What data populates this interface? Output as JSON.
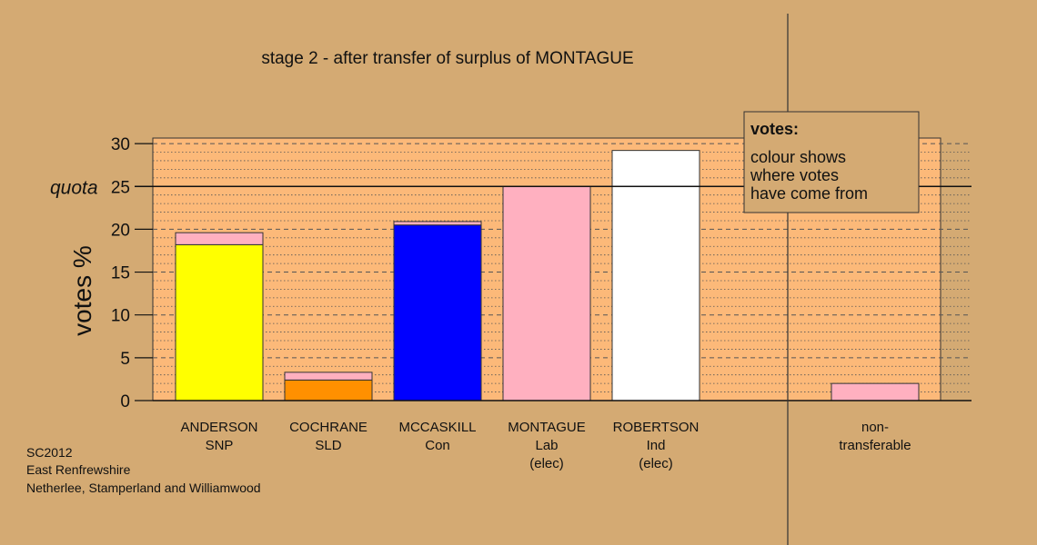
{
  "chart_data": {
    "type": "bar",
    "stacked": true,
    "title": "stage 2 - after transfer of surplus of MONTAGUE",
    "ylabel": "votes %",
    "xlabel": "",
    "ylim": [
      0,
      30.5
    ],
    "yticks": [
      0,
      5,
      10,
      15,
      20,
      25,
      30
    ],
    "quota": {
      "label": "quota",
      "value": 25
    },
    "grid": true,
    "categories": [
      {
        "lines": [
          "ANDERSON",
          "SNP"
        ]
      },
      {
        "lines": [
          "COCHRANE",
          "SLD"
        ]
      },
      {
        "lines": [
          "MCCASKILL",
          "Con"
        ]
      },
      {
        "lines": [
          "MONTAGUE",
          "Lab",
          "(elec)"
        ]
      },
      {
        "lines": [
          "ROBERTSON",
          "Ind",
          "(elec)"
        ]
      },
      {
        "lines": [
          "non-",
          "transferable"
        ]
      }
    ],
    "bars": [
      {
        "segments": [
          {
            "value": 18.2,
            "color": "#ffff00"
          },
          {
            "value": 1.4,
            "color": "#ffb0c0"
          }
        ]
      },
      {
        "segments": [
          {
            "value": 2.4,
            "color": "#ff9000"
          },
          {
            "value": 0.9,
            "color": "#ffb0c0"
          }
        ]
      },
      {
        "segments": [
          {
            "value": 20.5,
            "color": "#0000ff"
          },
          {
            "value": 0.4,
            "color": "#ffb0c0"
          }
        ]
      },
      {
        "segments": [
          {
            "value": 25.0,
            "color": "#ffb0c0"
          }
        ]
      },
      {
        "segments": [
          {
            "value": 29.2,
            "color": "#ffffff"
          }
        ]
      },
      {
        "segments": [
          {
            "value": 2.0,
            "color": "#ffb0c0"
          }
        ]
      }
    ],
    "legend": {
      "title": "votes:",
      "lines": [
        "colour shows",
        "where votes",
        "have come from"
      ],
      "placement": "top-right"
    }
  },
  "footer": {
    "lines": [
      "SC2012",
      "East Renfrewshire",
      "Netherlee, Stamperland and Williamwood"
    ]
  },
  "colors": {
    "background": "#d4aa73",
    "plot_area": "#fcb979"
  }
}
